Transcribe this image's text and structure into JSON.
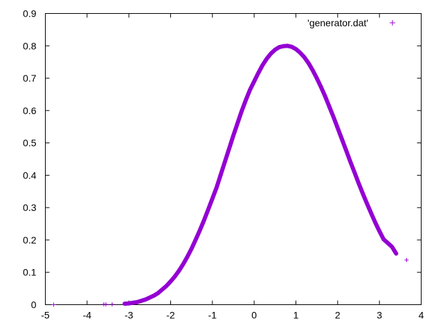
{
  "chart_data": {
    "type": "scatter",
    "title": "",
    "xlabel": "",
    "ylabel": "",
    "xlim": [
      -5,
      4
    ],
    "ylim": [
      0,
      0.9
    ],
    "xticks": [
      -5,
      -4,
      -3,
      -2,
      -1,
      0,
      1,
      2,
      3,
      4
    ],
    "yticks": [
      0,
      0.1,
      0.2,
      0.3,
      0.4,
      0.5,
      0.6,
      0.7,
      0.8,
      0.9
    ],
    "xtick_labels": [
      "-5",
      "-4",
      "-3",
      "-2",
      "-1",
      "0",
      "1",
      "2",
      "3",
      "4"
    ],
    "ytick_labels": [
      "0",
      "0.1",
      "0.2",
      "0.3",
      "0.4",
      "0.5",
      "0.6",
      "0.7",
      "0.8",
      "0.9"
    ],
    "grid": false,
    "legend_position": "top-right",
    "series": [
      {
        "name": "'generator.dat'",
        "marker": "plus",
        "color": "#9400d3",
        "x": [
          -4.8,
          -3.6,
          -3.55,
          -3.4,
          -3.1,
          -3.0,
          -2.9,
          -2.8,
          -2.7,
          -2.6,
          -2.5,
          -2.4,
          -2.3,
          -2.2,
          -2.1,
          -2.0,
          -1.9,
          -1.8,
          -1.7,
          -1.6,
          -1.5,
          -1.4,
          -1.3,
          -1.2,
          -1.1,
          -1.0,
          -0.9,
          -0.8,
          -0.7,
          -0.6,
          -0.5,
          -0.4,
          -0.3,
          -0.2,
          -0.1,
          0.0,
          0.1,
          0.2,
          0.3,
          0.4,
          0.5,
          0.6,
          0.7,
          0.8,
          0.9,
          1.0,
          1.1,
          1.2,
          1.3,
          1.4,
          1.5,
          1.6,
          1.7,
          1.8,
          1.9,
          2.0,
          2.1,
          2.2,
          2.3,
          2.4,
          2.5,
          2.6,
          2.7,
          2.8,
          2.9,
          3.0,
          3.1,
          3.3,
          3.4,
          3.65
        ],
        "y": [
          0.0,
          0.001,
          0.001,
          0.001,
          0.003,
          0.004,
          0.006,
          0.008,
          0.012,
          0.016,
          0.022,
          0.028,
          0.036,
          0.047,
          0.058,
          0.072,
          0.087,
          0.105,
          0.125,
          0.148,
          0.173,
          0.201,
          0.23,
          0.261,
          0.294,
          0.328,
          0.362,
          0.402,
          0.442,
          0.482,
          0.522,
          0.56,
          0.598,
          0.632,
          0.664,
          0.69,
          0.716,
          0.74,
          0.76,
          0.776,
          0.788,
          0.796,
          0.799,
          0.8,
          0.797,
          0.79,
          0.779,
          0.765,
          0.747,
          0.725,
          0.7,
          0.673,
          0.644,
          0.612,
          0.58,
          0.546,
          0.512,
          0.478,
          0.443,
          0.41,
          0.376,
          0.344,
          0.313,
          0.283,
          0.254,
          0.227,
          0.202,
          0.179,
          0.158,
          0.138
        ]
      }
    ]
  }
}
